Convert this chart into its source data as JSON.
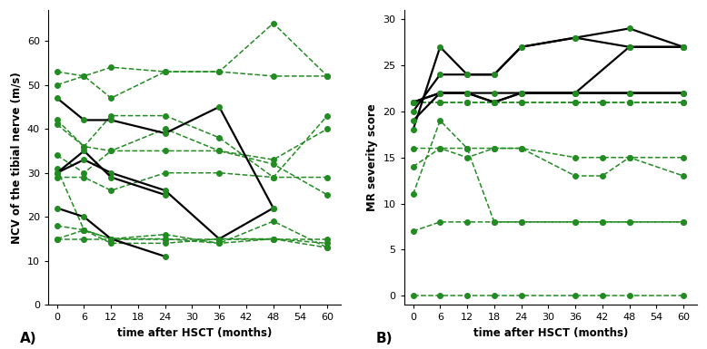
{
  "chart_A": {
    "ylabel": "NCV of the tibial nerve (m/s)",
    "xlabel": "time after HSCT (months)",
    "label": "A)",
    "ylim": [
      0,
      67
    ],
    "yticks": [
      0,
      10,
      20,
      30,
      40,
      50,
      60
    ],
    "xticks": [
      0,
      6,
      12,
      18,
      24,
      30,
      36,
      42,
      48,
      54,
      60
    ],
    "solid_lines": [
      {
        "x": [
          0,
          6,
          12,
          24,
          36,
          48
        ],
        "y": [
          47,
          42,
          42,
          39,
          45,
          22
        ]
      },
      {
        "x": [
          0,
          6,
          12,
          24,
          36,
          48
        ],
        "y": [
          30,
          33,
          30,
          26,
          15,
          22
        ]
      },
      {
        "x": [
          0,
          6,
          12,
          24
        ],
        "y": [
          30,
          35,
          29,
          25
        ]
      },
      {
        "x": [
          0,
          6,
          12,
          24
        ],
        "y": [
          22,
          20,
          15,
          11
        ]
      }
    ],
    "dashed_lines": [
      {
        "x": [
          0,
          6,
          12,
          24,
          36,
          48,
          60
        ],
        "y": [
          53,
          52,
          54,
          53,
          53,
          64,
          52
        ]
      },
      {
        "x": [
          0,
          6,
          12,
          24,
          36,
          48,
          60
        ],
        "y": [
          50,
          52,
          47,
          53,
          53,
          52,
          52
        ]
      },
      {
        "x": [
          0,
          6,
          12,
          24,
          36,
          48,
          60
        ],
        "y": [
          42,
          36,
          43,
          43,
          38,
          29,
          43
        ]
      },
      {
        "x": [
          0,
          6,
          12,
          24,
          36,
          48,
          60
        ],
        "y": [
          41,
          36,
          35,
          40,
          35,
          33,
          40
        ]
      },
      {
        "x": [
          0,
          6,
          12,
          24,
          36,
          48,
          60
        ],
        "y": [
          34,
          30,
          35,
          35,
          35,
          32,
          25
        ]
      },
      {
        "x": [
          0,
          6,
          12,
          24,
          36,
          48,
          60
        ],
        "y": [
          29,
          29,
          26,
          30,
          30,
          29,
          29
        ]
      },
      {
        "x": [
          0,
          6,
          12,
          24,
          36,
          48,
          60
        ],
        "y": [
          31,
          17,
          15,
          15,
          14,
          19,
          13
        ]
      },
      {
        "x": [
          0,
          6,
          12,
          24,
          36,
          48,
          60
        ],
        "y": [
          18,
          17,
          15,
          16,
          14,
          15,
          14
        ]
      },
      {
        "x": [
          0,
          6,
          12,
          24,
          36,
          48,
          60
        ],
        "y": [
          15,
          15,
          15,
          15,
          15,
          15,
          15
        ]
      },
      {
        "x": [
          0,
          6,
          12,
          24,
          36,
          48,
          60
        ],
        "y": [
          15,
          17,
          14,
          14,
          15,
          15,
          13
        ]
      }
    ]
  },
  "chart_B": {
    "ylabel": "MR severity score",
    "xlabel": "time after HSCT (months)",
    "label": "B)",
    "ylim": [
      -1,
      31
    ],
    "yticks": [
      0,
      5,
      10,
      15,
      20,
      25,
      30
    ],
    "xticks": [
      0,
      6,
      12,
      18,
      24,
      30,
      36,
      42,
      48,
      54,
      60
    ],
    "solid_lines": [
      {
        "x": [
          0,
          6,
          12,
          18,
          24,
          36,
          48,
          60
        ],
        "y": [
          18,
          27,
          24,
          24,
          27,
          28,
          29,
          27
        ]
      },
      {
        "x": [
          0,
          6,
          12,
          18,
          24,
          36,
          48,
          60
        ],
        "y": [
          20,
          24,
          24,
          24,
          27,
          28,
          27,
          27
        ]
      },
      {
        "x": [
          0,
          6,
          12,
          18,
          24,
          36,
          48,
          60
        ],
        "y": [
          21,
          22,
          22,
          22,
          22,
          22,
          27,
          27
        ]
      },
      {
        "x": [
          0,
          6,
          12,
          18,
          24,
          36,
          48,
          60
        ],
        "y": [
          21,
          22,
          22,
          21,
          22,
          22,
          22,
          22
        ]
      },
      {
        "x": [
          0,
          6,
          12,
          18,
          24,
          36,
          48,
          60
        ],
        "y": [
          19,
          22,
          22,
          21,
          22,
          22,
          22,
          22
        ]
      }
    ],
    "dashed_lines": [
      {
        "x": [
          0,
          6,
          12,
          18,
          24,
          36,
          42,
          48,
          60
        ],
        "y": [
          21,
          21,
          21,
          21,
          21,
          21,
          21,
          21,
          21
        ]
      },
      {
        "x": [
          0,
          6,
          12,
          18,
          24,
          36,
          42,
          48,
          60
        ],
        "y": [
          21,
          21,
          21,
          21,
          21,
          21,
          21,
          21,
          21
        ]
      },
      {
        "x": [
          0,
          6,
          12,
          18,
          24,
          36,
          42,
          48,
          60
        ],
        "y": [
          16,
          16,
          16,
          16,
          16,
          15,
          15,
          15,
          15
        ]
      },
      {
        "x": [
          0,
          6,
          12,
          18,
          24,
          36,
          42,
          48,
          60
        ],
        "y": [
          14,
          16,
          15,
          16,
          16,
          13,
          13,
          15,
          13
        ]
      },
      {
        "x": [
          0,
          6,
          12,
          18,
          24,
          36,
          42,
          48,
          60
        ],
        "y": [
          11,
          19,
          16,
          8,
          8,
          8,
          8,
          8,
          8
        ]
      },
      {
        "x": [
          0,
          6,
          12,
          18,
          24,
          36,
          42,
          48,
          60
        ],
        "y": [
          7,
          8,
          8,
          8,
          8,
          8,
          8,
          8,
          8
        ]
      },
      {
        "x": [
          0,
          6,
          12,
          18,
          24,
          36,
          42,
          48,
          60
        ],
        "y": [
          0,
          0,
          0,
          0,
          0,
          0,
          0,
          0,
          0
        ]
      }
    ]
  },
  "green": "#228B22",
  "black": "#000000",
  "marker_size": 4,
  "lw_solid": 1.6,
  "lw_dashed": 1.1,
  "fig_width": 7.78,
  "fig_height": 3.85,
  "dpi": 100
}
